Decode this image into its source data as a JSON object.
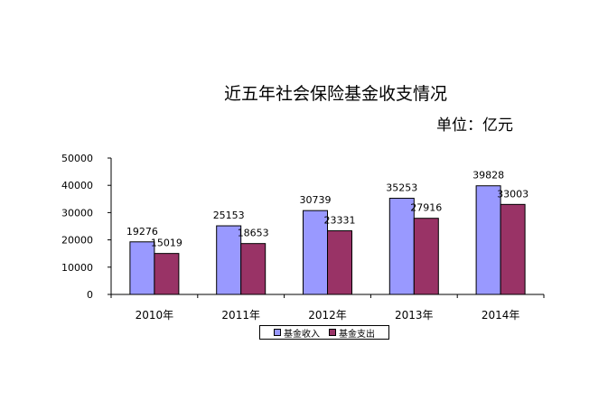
{
  "chart_data": {
    "type": "bar",
    "title": "近五年社会保险基金收支情况",
    "unit": "单位：亿元",
    "categories": [
      "2010年",
      "2011年",
      "2012年",
      "2013年",
      "2014年"
    ],
    "series": [
      {
        "name": "基金收入",
        "values": [
          19276,
          25153,
          30739,
          35253,
          39828
        ],
        "color": "#9999ff"
      },
      {
        "name": "基金支出",
        "values": [
          15019,
          18653,
          23331,
          27916,
          33003
        ],
        "color": "#993366"
      }
    ],
    "ylim": [
      0,
      50000
    ],
    "yticks": [
      0,
      10000,
      20000,
      30000,
      40000,
      50000
    ],
    "grid": false,
    "legend": "bottom"
  }
}
